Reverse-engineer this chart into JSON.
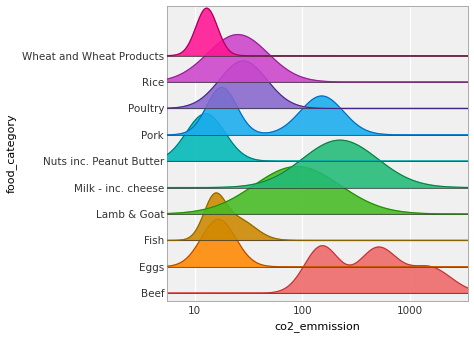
{
  "categories": [
    "Wheat and Wheat Products",
    "Rice",
    "Poultry",
    "Pork",
    "Nuts inc. Peanut Butter",
    "Milk - inc. cheese",
    "Lamb & Goat",
    "Fish",
    "Eggs",
    "Beef"
  ],
  "colors": [
    "#FF1493",
    "#CC44CC",
    "#8866CC",
    "#1AACEE",
    "#00B8B8",
    "#22BB77",
    "#44BB22",
    "#CC8800",
    "#FF8800",
    "#EE6666"
  ],
  "edge_colors": [
    "#990055",
    "#882288",
    "#442288",
    "#0066BB",
    "#007777",
    "#117744",
    "#228800",
    "#886600",
    "#AA4400",
    "#BB3333"
  ],
  "xlabel": "co2_emmission",
  "ylabel": "food_category",
  "background_color": "#ffffff",
  "plot_bg_color": "#f0f0f0",
  "grid_color": "#ffffff",
  "overlap": 1.8,
  "label_fontsize": 8,
  "tick_fontsize": 7.5
}
